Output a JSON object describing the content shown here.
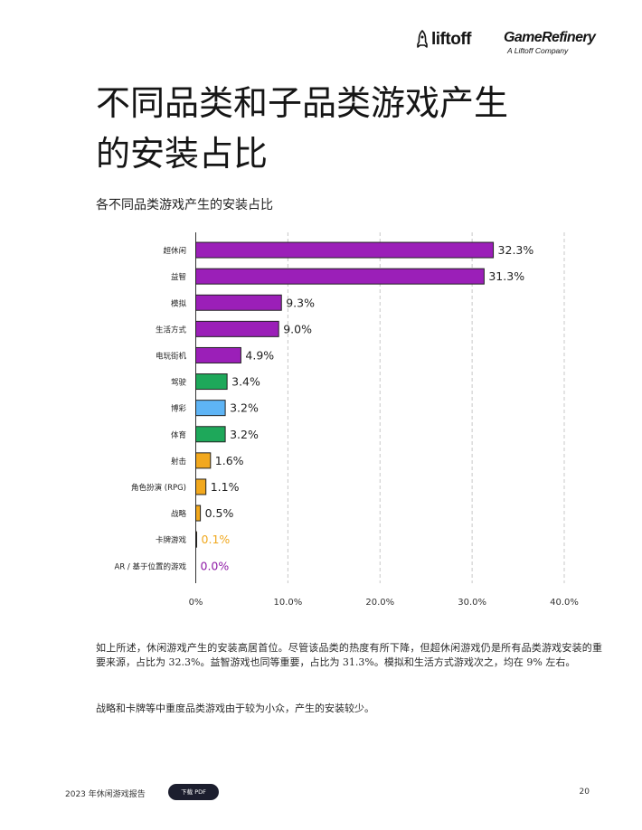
{
  "header": {
    "logo_liftoff": "liftoff",
    "logo_gamerefinery": "GameRefinery",
    "logo_gamerefinery_sub": "A Liftoff Company"
  },
  "title": {
    "line1": "不同品类和子品类游戏产生",
    "line2": "的安装占比"
  },
  "chart_subtitle": "各不同品类游戏产生的安装占比",
  "colors": {
    "purple": "#9b1fb8",
    "green": "#1ea85a",
    "blue": "#5eb4f5",
    "orange": "#f2a81d",
    "gridline": "#c8c8c8",
    "label_purple": "#8e1aa6",
    "label_orange": "#f0a81e"
  },
  "chart_data": {
    "type": "bar",
    "orientation": "horizontal",
    "categories": [
      "超休闲",
      "益智",
      "模拟",
      "生活方式",
      "电玩街机",
      "驾驶",
      "博彩",
      "体育",
      "射击",
      "角色扮演 (RPG)",
      "战略",
      "卡牌游戏",
      "AR / 基于位置的游戏"
    ],
    "values": [
      32.3,
      31.3,
      9.3,
      9.0,
      4.9,
      3.4,
      3.2,
      3.2,
      1.6,
      1.1,
      0.5,
      0.1,
      0.0
    ],
    "value_labels": [
      "32.3%",
      "31.3%",
      "9.3%",
      "9.0%",
      "4.9%",
      "3.4%",
      "3.2%",
      "3.2%",
      "1.6%",
      "1.1%",
      "0.5%",
      "0.1%",
      "0.0%"
    ],
    "bar_colors": [
      "purple",
      "purple",
      "purple",
      "purple",
      "purple",
      "green",
      "blue",
      "green",
      "orange",
      "orange",
      "orange",
      "orange",
      "purple"
    ],
    "xlim": [
      0,
      40
    ],
    "xticks": [
      0,
      10,
      20,
      30,
      40
    ],
    "xtick_labels": [
      "0%",
      "10.0%",
      "20.0%",
      "30.0%",
      "40.0%"
    ],
    "grid": "vertical dashed",
    "title": "各不同品类游戏产生的安装占比",
    "xlabel": "",
    "ylabel": ""
  },
  "body": {
    "paragraph1": "如上所述，休闲游戏产生的安装高居首位。尽管该品类的热度有所下降，但超休闲游戏仍是所有品类游戏安装的重要来源，占比为 32.3%。益智游戏也同等重要，占比为 31.3%。模拟和生活方式游戏次之，均在 9% 左右。",
    "paragraph2": "战略和卡牌等中重度品类游戏由于较为小众，产生的安装较少。"
  },
  "footer": {
    "report_title": "2023 年休闲游戏报告",
    "download_button": "下载 PDF",
    "page_number": "20"
  }
}
